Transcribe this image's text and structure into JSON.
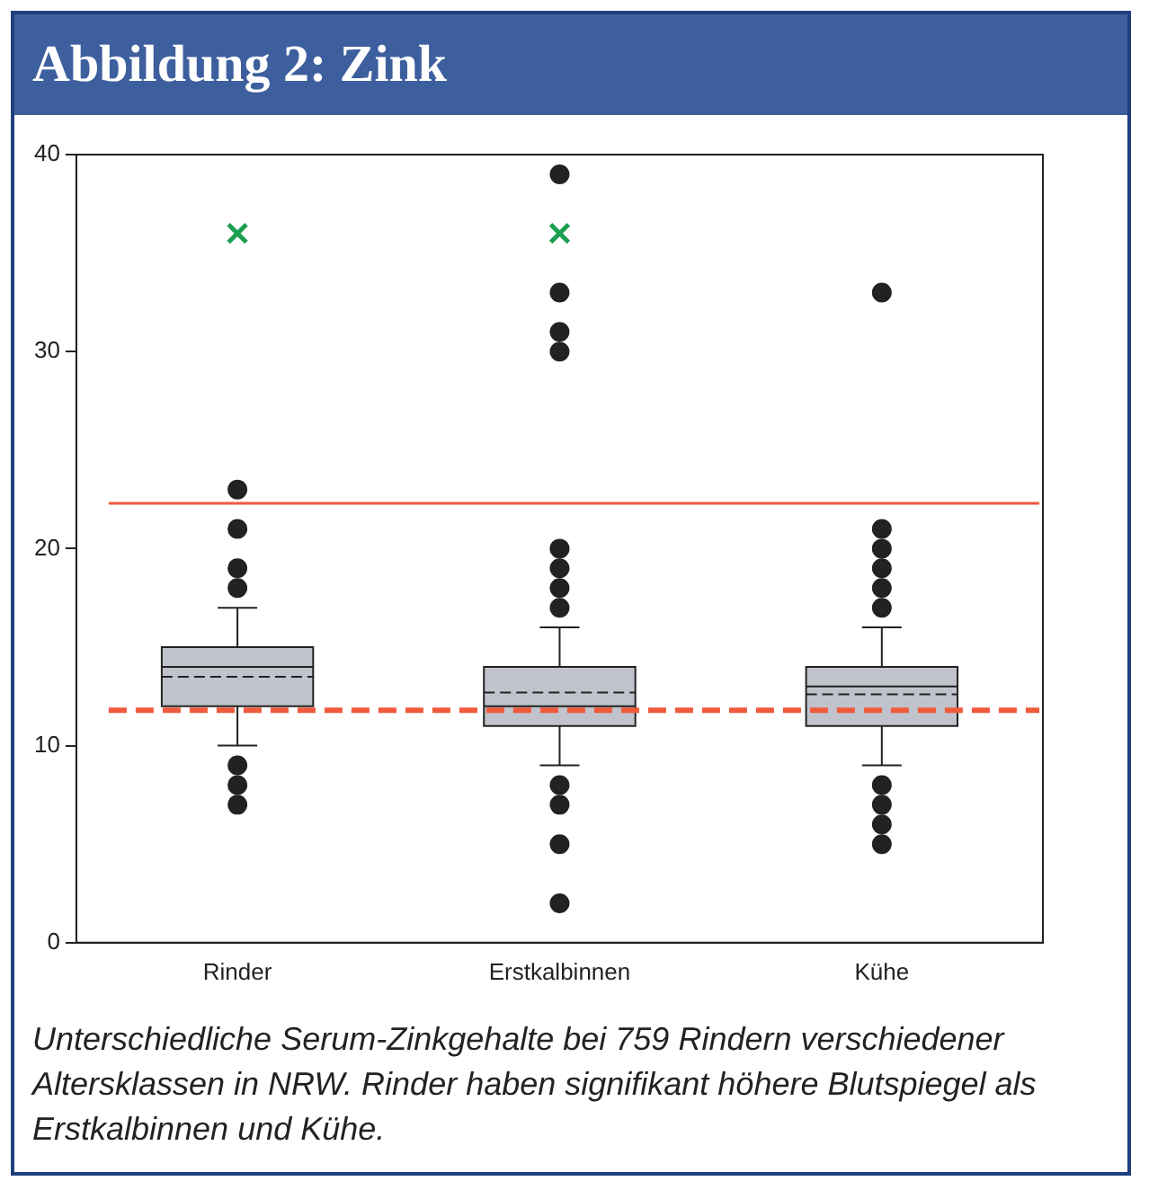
{
  "chart_data": {
    "type": "box",
    "title": "Abbildung 2: Zink",
    "categories": [
      "Rinder",
      "Erstkalbinnen",
      "Kühe"
    ],
    "series": [
      {
        "color": "#c0c3cb",
        "boxes": [
          {
            "low": 10,
            "q1": 12,
            "median": 14,
            "q3": 15,
            "high": 17,
            "mean": 13.5,
            "outliers": [
              7,
              8,
              9,
              18,
              19,
              21,
              23
            ]
          },
          {
            "low": 9,
            "q1": 11,
            "median": 12,
            "q3": 14,
            "high": 16,
            "mean": 12.7,
            "outliers": [
              2,
              5,
              7,
              8,
              17,
              18,
              19,
              20,
              30,
              31,
              33,
              39
            ]
          },
          {
            "low": 9,
            "q1": 11,
            "median": 13,
            "q3": 14,
            "high": 16,
            "mean": 12.6,
            "outliers": [
              5,
              6,
              7,
              8,
              17,
              18,
              19,
              20,
              21,
              33
            ]
          }
        ]
      },
      {
        "type": "scatter",
        "x": [
          "Rinder",
          "Erstkalbinnen"
        ],
        "values": [
          36,
          36
        ],
        "color": "#1aa050",
        "marker": "cross"
      }
    ],
    "ylim": [
      0,
      40
    ],
    "yticks": [
      0,
      10,
      20,
      30,
      40
    ],
    "ref_lines": [
      {
        "axis": "y",
        "value": 22.3,
        "color": "#f05a3c",
        "line_style": "solid"
      },
      {
        "axis": "y",
        "value": 11.8,
        "color": "#f05a3c",
        "line_style": "dashed"
      }
    ],
    "grid": false,
    "legend": false,
    "annotations": [
      "Unterschiedliche Serum-Zinkgehalte bei 759 Rindern verschiedener Altersklassen in NRW. Rinder haben signifikant höhere Blutspiegel als Erstkalbinnen und Kühe."
    ]
  }
}
